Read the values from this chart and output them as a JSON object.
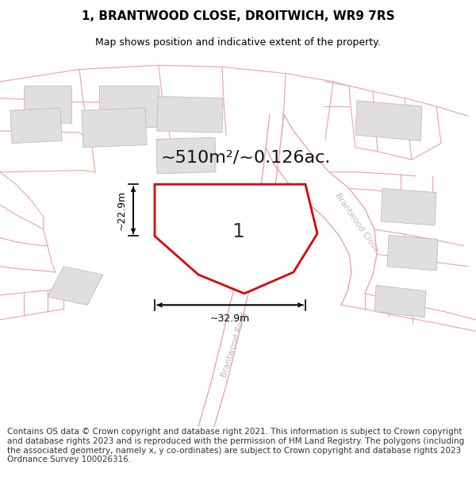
{
  "title": "1, BRANTWOOD CLOSE, DROITWICH, WR9 7RS",
  "subtitle": "Map shows position and indicative extent of the property.",
  "area_text": "~510m²/~0.126ac.",
  "plot_number": "1",
  "dim_width": "~32.9m",
  "dim_height": "~22.9m",
  "footer": "Contains OS data © Crown copyright and database right 2021. This information is subject to Crown copyright and database rights 2023 and is reproduced with the permission of HM Land Registry. The polygons (including the associated geometry, namely x, y co-ordinates) are subject to Crown copyright and database rights 2023 Ordnance Survey 100026316.",
  "map_bg": "#ffffff",
  "plot_border_color": "#dd0000",
  "plot_fill": "#ffffff",
  "neighbor_fill": "#e0dede",
  "neighbor_stroke": "#c0bcbc",
  "boundary_color": "#f0a0a0",
  "road_label_color": "#aaaaaa",
  "title_color": "#000000",
  "footer_color": "#333333",
  "title_fontsize": 11,
  "subtitle_fontsize": 9,
  "area_fontsize": 16,
  "plot_num_fontsize": 18,
  "footer_fontsize": 7.5,
  "neighbor_lw": 0.6,
  "boundary_lw": 0.8
}
